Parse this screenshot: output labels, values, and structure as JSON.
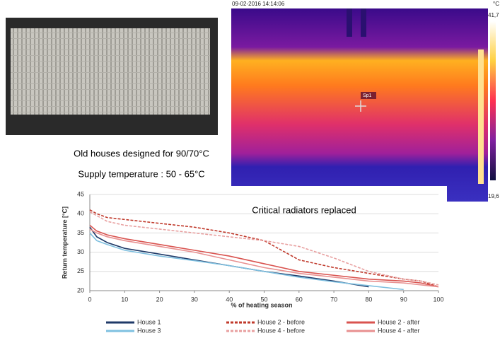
{
  "thermal": {
    "timestamp": "09-02-2016 14:14:06",
    "unit": "°C",
    "max": "41,7",
    "min": "19,6",
    "spot": "Sp1"
  },
  "caption": {
    "line1": "Old houses designed for 90/70°C",
    "line2": "Supply temperature : 50 - 65°C"
  },
  "chart_data": {
    "type": "line",
    "annotation": "Critical radiators replaced",
    "y_label": "Return temperature [°C]",
    "x_label": "% of heating season",
    "x": [
      0,
      2,
      5,
      10,
      20,
      30,
      40,
      50,
      60,
      70,
      80,
      90,
      95,
      100
    ],
    "xlim": [
      0,
      100
    ],
    "xticks": [
      0,
      10,
      20,
      30,
      40,
      50,
      60,
      70,
      80,
      90,
      100
    ],
    "ylim": [
      20,
      45
    ],
    "yticks": [
      20,
      25,
      30,
      35,
      40,
      45
    ],
    "grid": true,
    "series": [
      {
        "name": "House 1",
        "color": "#1f3a68",
        "dash": false,
        "values": [
          36.5,
          34,
          32.5,
          31,
          29.5,
          28,
          26.5,
          25,
          23.8,
          22.5,
          21,
          null,
          null,
          null
        ]
      },
      {
        "name": "House 2 - before",
        "color": "#c0392b",
        "dash": true,
        "values": [
          41,
          40,
          39,
          38.5,
          37.5,
          36.5,
          35,
          33,
          28,
          26,
          24.5,
          23,
          22.5,
          21
        ]
      },
      {
        "name": "House 2 - after",
        "color": "#d9534f",
        "dash": false,
        "values": [
          37,
          35.5,
          34.5,
          33.5,
          32,
          30.5,
          29,
          27,
          25,
          24,
          23,
          22.5,
          22,
          21
        ]
      },
      {
        "name": "House 3",
        "color": "#7fc0e0",
        "dash": false,
        "values": [
          35,
          33,
          32,
          30.5,
          29,
          27.8,
          26.5,
          25,
          23.5,
          22.3,
          21.3,
          20.3,
          null,
          null
        ]
      },
      {
        "name": "House 4 - before",
        "color": "#e8a0a0",
        "dash": true,
        "values": [
          40.5,
          39.5,
          38,
          37,
          36,
          35,
          34,
          33,
          31.5,
          28.5,
          25,
          23,
          22.5,
          21.5
        ]
      },
      {
        "name": "House 4 - after",
        "color": "#e89090",
        "dash": false,
        "values": [
          36,
          35,
          34,
          33,
          31.5,
          30,
          28,
          26,
          24.5,
          23.5,
          22.5,
          22,
          21.5,
          21
        ]
      }
    ]
  }
}
